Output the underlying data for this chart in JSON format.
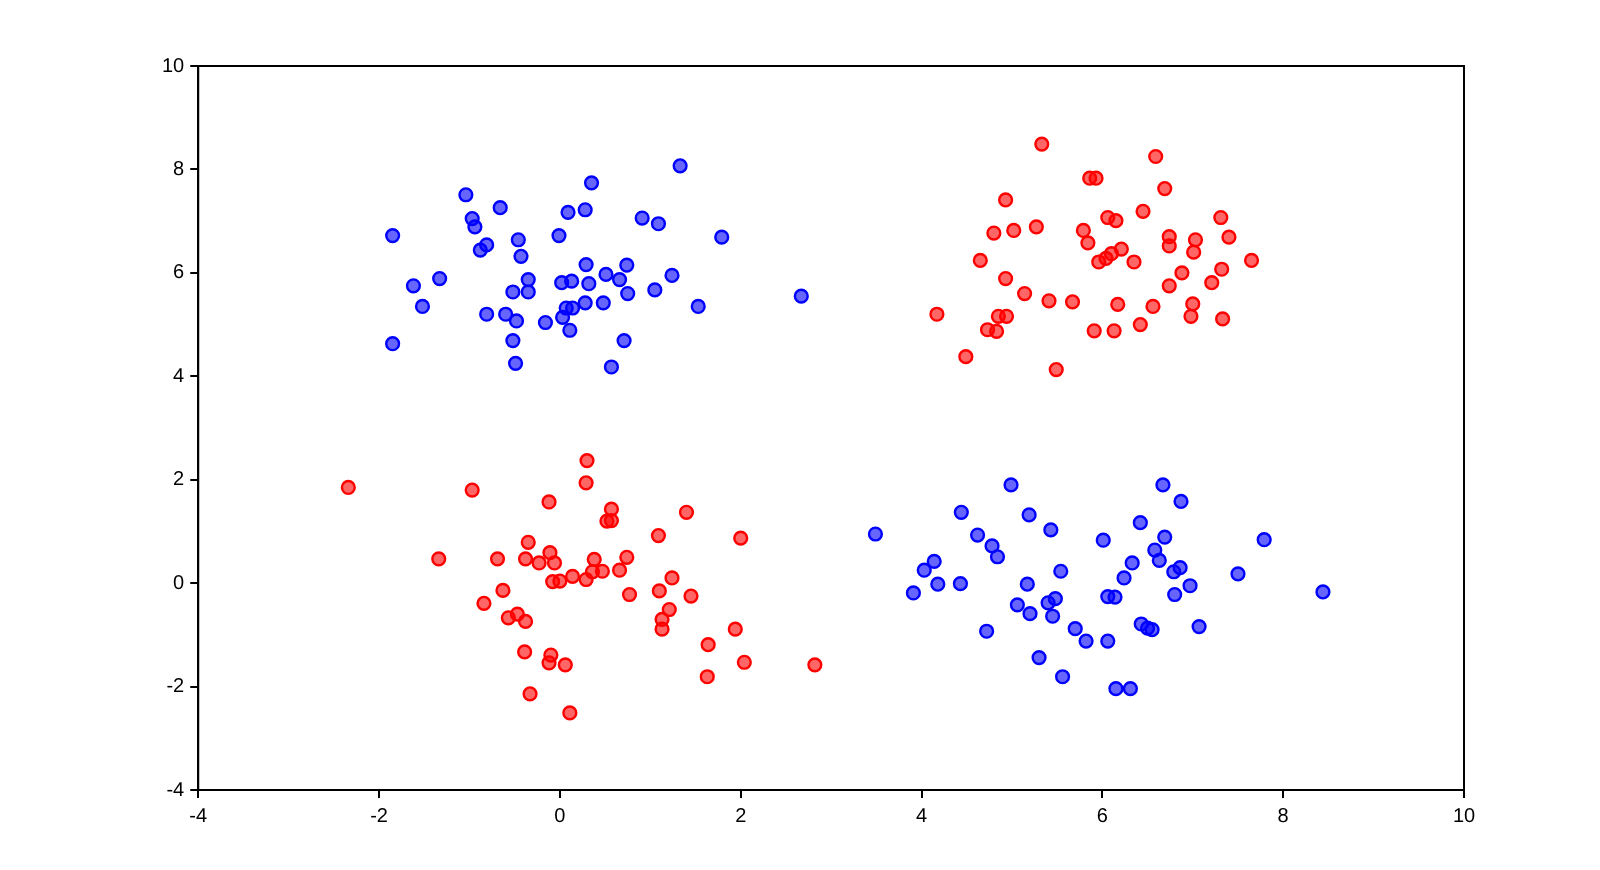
{
  "chart_data": {
    "type": "scatter",
    "xlim": [
      -4,
      10
    ],
    "ylim": [
      -4,
      10
    ],
    "xticks": [
      -4,
      -2,
      0,
      2,
      4,
      6,
      8,
      10
    ],
    "yticks": [
      -4,
      -2,
      0,
      2,
      4,
      6,
      8,
      10
    ],
    "grid": false,
    "legend": false,
    "marker": "circle",
    "series": [
      {
        "color": "#0000ff",
        "x": [
          1.33,
          0.35,
          -1.04,
          -0.66,
          0.09,
          0.28,
          -0.97,
          -0.94,
          0.91,
          1.09,
          -1.85,
          -0.46,
          -0.01,
          1.79,
          -0.81,
          -0.88,
          -0.43,
          -1.62,
          -1.33,
          -0.35,
          -0.52,
          -0.35,
          0.02,
          0.13,
          0.32,
          0.29,
          0.51,
          0.66,
          0.74,
          0.75,
          1.24,
          1.05,
          -1.52,
          -0.81,
          -0.6,
          -0.48,
          -0.16,
          0.03,
          0.07,
          0.14,
          0.28,
          0.48,
          0.11,
          1.53,
          2.67,
          -1.85,
          -0.52,
          0.71,
          -0.49,
          0.57,
          4.99,
          6.67,
          6.87,
          4.44,
          5.19,
          3.49,
          5.43,
          4.62,
          6.42,
          6.01,
          6.69,
          7.79,
          4.78,
          4.84,
          4.14,
          4.03,
          6.58,
          6.63,
          6.33,
          5.54,
          6.79,
          6.86,
          7.5,
          6.24,
          4.18,
          4.43,
          5.17,
          6.97,
          8.44,
          3.91,
          6.06,
          6.14,
          6.8,
          5.06,
          5.4,
          5.48,
          5.2,
          5.45,
          4.72,
          5.7,
          6.43,
          6.5,
          6.55,
          7.07,
          5.82,
          6.06,
          5.3,
          5.56,
          6.15,
          6.31
        ],
        "values": [
          8.07,
          7.74,
          7.51,
          7.26,
          7.17,
          7.22,
          7.05,
          6.89,
          7.06,
          6.95,
          6.72,
          6.64,
          6.72,
          6.69,
          6.54,
          6.44,
          6.32,
          5.75,
          5.89,
          5.87,
          5.63,
          5.63,
          5.81,
          5.84,
          5.79,
          6.16,
          5.97,
          5.87,
          6.15,
          5.6,
          5.95,
          5.67,
          5.35,
          5.2,
          5.2,
          5.07,
          5.04,
          5.14,
          5.32,
          5.32,
          5.42,
          5.42,
          4.89,
          5.35,
          5.55,
          4.63,
          4.69,
          4.69,
          4.25,
          4.18,
          1.9,
          1.9,
          1.58,
          1.37,
          1.32,
          0.95,
          1.03,
          0.93,
          1.17,
          0.83,
          0.89,
          0.84,
          0.72,
          0.51,
          0.42,
          0.25,
          0.64,
          0.44,
          0.39,
          0.23,
          0.22,
          0.3,
          0.18,
          0.1,
          -0.02,
          -0.01,
          -0.02,
          -0.05,
          -0.17,
          -0.19,
          -0.26,
          -0.27,
          -0.22,
          -0.42,
          -0.38,
          -0.3,
          -0.59,
          -0.64,
          -0.93,
          -0.88,
          -0.79,
          -0.87,
          -0.9,
          -0.84,
          -1.12,
          -1.12,
          -1.44,
          -1.81,
          -2.04,
          -2.04
        ]
      },
      {
        "color": "#ff0000",
        "x": [
          5.33,
          6.59,
          5.86,
          5.93,
          6.69,
          4.93,
          6.45,
          6.06,
          6.15,
          7.31,
          4.8,
          5.02,
          5.27,
          5.79,
          5.84,
          6.74,
          6.74,
          7.03,
          7.4,
          6.21,
          6.1,
          6.04,
          5.96,
          7.01,
          4.65,
          6.35,
          7.65,
          7.32,
          6.88,
          4.93,
          6.74,
          7.21,
          5.14,
          5.41,
          5.67,
          6.17,
          6.56,
          7.0,
          4.17,
          4.85,
          4.94,
          6.98,
          7.33,
          6.42,
          4.73,
          4.83,
          5.91,
          6.13,
          4.49,
          5.49,
          -2.34,
          -0.97,
          0.3,
          0.29,
          -0.12,
          0.57,
          0.52,
          0.57,
          1.4,
          1.09,
          2.0,
          -0.35,
          -1.34,
          -0.69,
          -0.38,
          -0.23,
          -0.11,
          -0.06,
          0.38,
          0.74,
          0.36,
          0.47,
          0.66,
          0.14,
          0.29,
          -0.08,
          0.0,
          1.24,
          -0.63,
          0.77,
          1.1,
          1.45,
          -0.84,
          1.21,
          1.13,
          1.13,
          -0.57,
          -0.47,
          -0.38,
          1.94,
          1.64,
          -0.39,
          -0.1,
          -0.12,
          0.06,
          2.04,
          2.82,
          1.63,
          -0.33,
          0.11
        ],
        "values": [
          8.49,
          8.25,
          7.83,
          7.83,
          7.63,
          7.41,
          7.19,
          7.07,
          7.01,
          7.07,
          6.77,
          6.82,
          6.89,
          6.82,
          6.58,
          6.7,
          6.52,
          6.64,
          6.69,
          6.46,
          6.37,
          6.28,
          6.21,
          6.4,
          6.24,
          6.21,
          6.24,
          6.07,
          6.0,
          5.89,
          5.75,
          5.81,
          5.6,
          5.46,
          5.44,
          5.39,
          5.35,
          5.4,
          5.2,
          5.16,
          5.16,
          5.16,
          5.11,
          5.0,
          4.9,
          4.87,
          4.88,
          4.88,
          4.38,
          4.13,
          1.85,
          1.8,
          2.37,
          1.94,
          1.57,
          1.43,
          1.2,
          1.21,
          1.37,
          0.92,
          0.87,
          0.79,
          0.47,
          0.47,
          0.47,
          0.39,
          0.59,
          0.39,
          0.46,
          0.5,
          0.22,
          0.23,
          0.25,
          0.13,
          0.07,
          0.03,
          0.04,
          0.1,
          -0.14,
          -0.22,
          -0.15,
          -0.25,
          -0.39,
          -0.51,
          -0.7,
          -0.89,
          -0.67,
          -0.6,
          -0.74,
          -0.89,
          -1.19,
          -1.33,
          -1.39,
          -1.54,
          -1.58,
          -1.53,
          -1.58,
          -1.81,
          -2.14,
          -2.51
        ]
      }
    ]
  }
}
